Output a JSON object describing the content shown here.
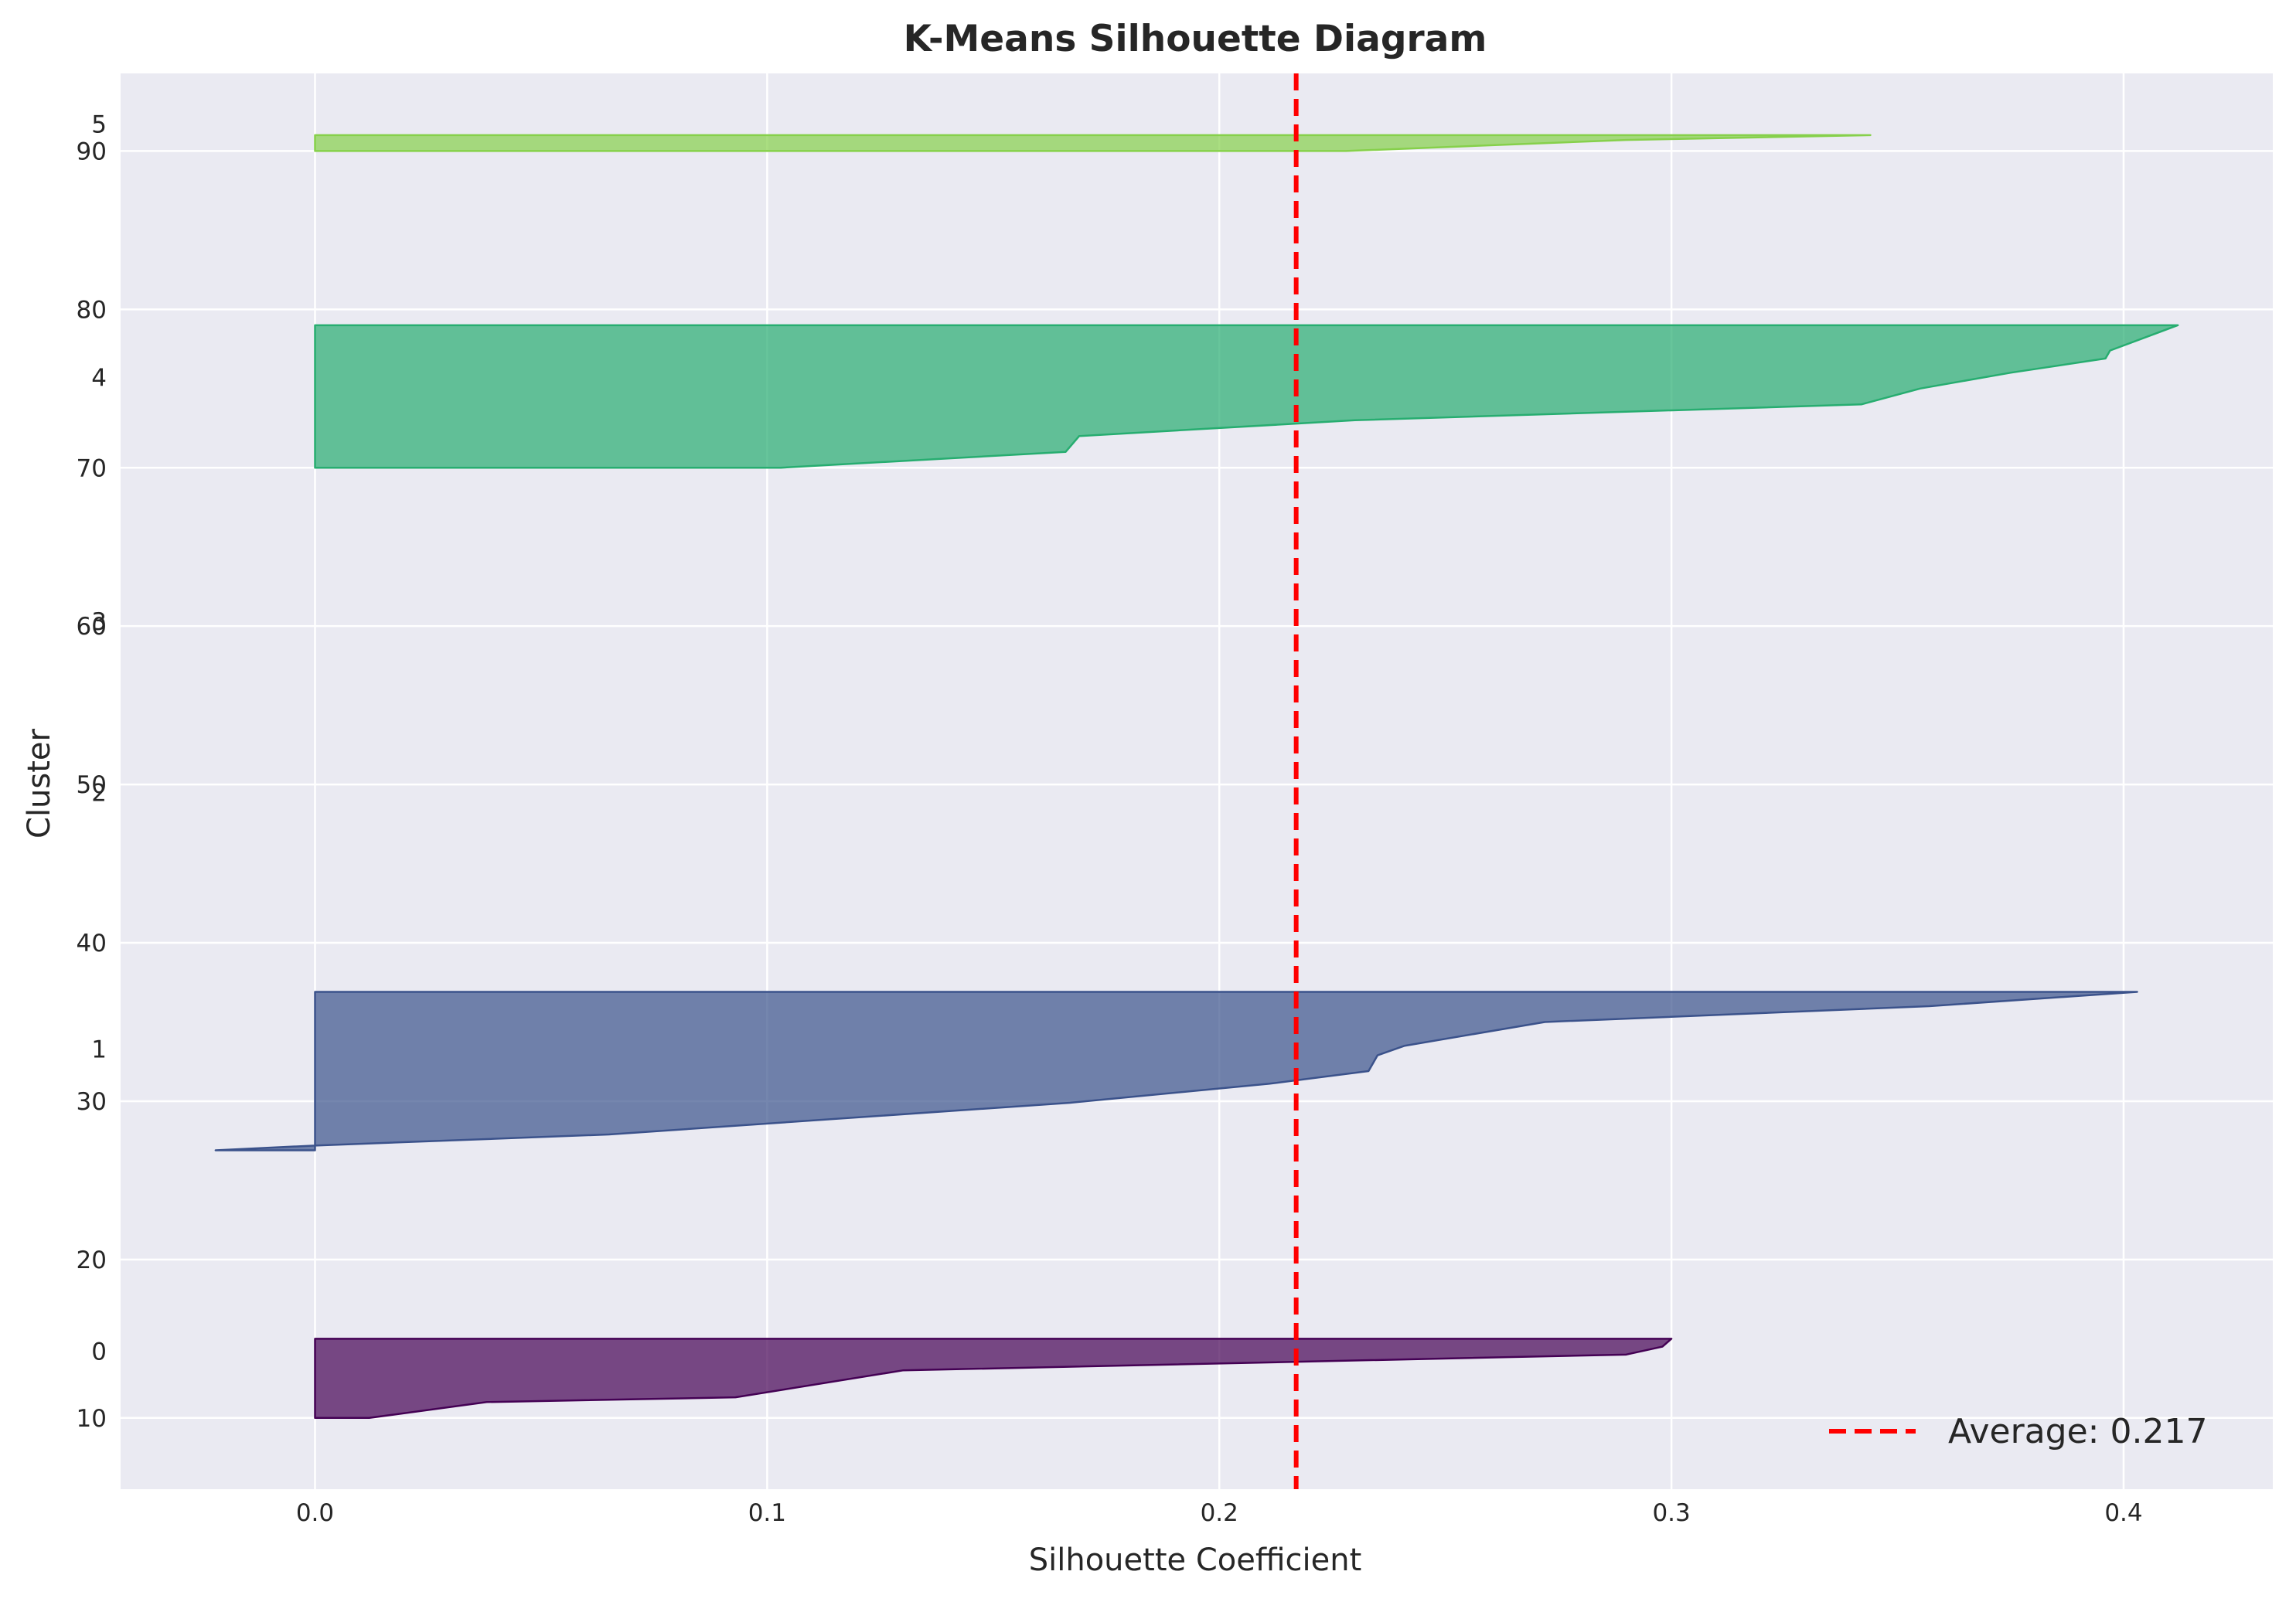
{
  "chart_data": {
    "type": "area",
    "title": "K-Means Silhouette Diagram",
    "xlabel": "Silhouette Coefficient",
    "ylabel": "Cluster",
    "xlim": [
      -0.043,
      0.433
    ],
    "ylim": [
      5.5,
      94.9
    ],
    "x_ticks": [
      0.0,
      0.1,
      0.2,
      0.3,
      0.4
    ],
    "x_tick_labels": [
      "0.0",
      "0.1",
      "0.2",
      "0.3",
      "0.4"
    ],
    "y_ticks": [
      10,
      20,
      30,
      40,
      50,
      60,
      70,
      80,
      90
    ],
    "y_tick_labels": [
      "10",
      "20",
      "30",
      "40",
      "50",
      "60",
      "70",
      "80",
      "90"
    ],
    "cluster_labels": [
      {
        "label": "0",
        "y": 14.2
      },
      {
        "label": "1",
        "y": 33.3
      },
      {
        "label": "2",
        "y": 49.5
      },
      {
        "label": "3",
        "y": 60.3
      },
      {
        "label": "4",
        "y": 75.7
      },
      {
        "label": "5",
        "y": 91.7
      }
    ],
    "grid": true,
    "legend_position": "bottom-right",
    "average": {
      "value": 0.217,
      "label": "Average: 0.217",
      "color": "#ff0000"
    },
    "series": [
      {
        "cluster": "0",
        "color": "#440154",
        "points": [
          [
            0.0,
            10.0
          ],
          [
            0.012,
            10.0
          ],
          [
            0.038,
            11.0
          ],
          [
            0.093,
            11.3
          ],
          [
            0.13,
            13.0
          ],
          [
            0.29,
            14.0
          ],
          [
            0.298,
            14.5
          ],
          [
            0.3,
            15.0
          ]
        ],
        "top": 15.0
      },
      {
        "cluster": "1",
        "color": "#3b528b",
        "points": [
          [
            -0.022,
            26.9
          ],
          [
            0.0,
            27.2
          ],
          [
            0.065,
            27.9
          ],
          [
            0.167,
            29.9
          ],
          [
            0.211,
            31.1
          ],
          [
            0.233,
            31.9
          ],
          [
            0.235,
            32.9
          ],
          [
            0.241,
            33.5
          ],
          [
            0.272,
            35.0
          ],
          [
            0.357,
            36.0
          ],
          [
            0.403,
            36.9
          ]
        ],
        "top": 36.9
      },
      {
        "cluster": "4",
        "color": "#27ad70",
        "points": [
          [
            0.0,
            70.0
          ],
          [
            0.103,
            70.0
          ],
          [
            0.166,
            71.0
          ],
          [
            0.169,
            72.0
          ],
          [
            0.23,
            73.0
          ],
          [
            0.342,
            74.0
          ],
          [
            0.355,
            75.0
          ],
          [
            0.375,
            76.0
          ],
          [
            0.396,
            76.9
          ],
          [
            0.397,
            77.4
          ],
          [
            0.412,
            79.0
          ]
        ],
        "top": 79.0
      },
      {
        "cluster": "5",
        "color": "#86d04b",
        "points": [
          [
            0.0,
            90.0
          ],
          [
            0.228,
            90.0
          ],
          [
            0.29,
            90.7
          ],
          [
            0.344,
            91.0
          ]
        ],
        "top": 91.0
      }
    ]
  }
}
